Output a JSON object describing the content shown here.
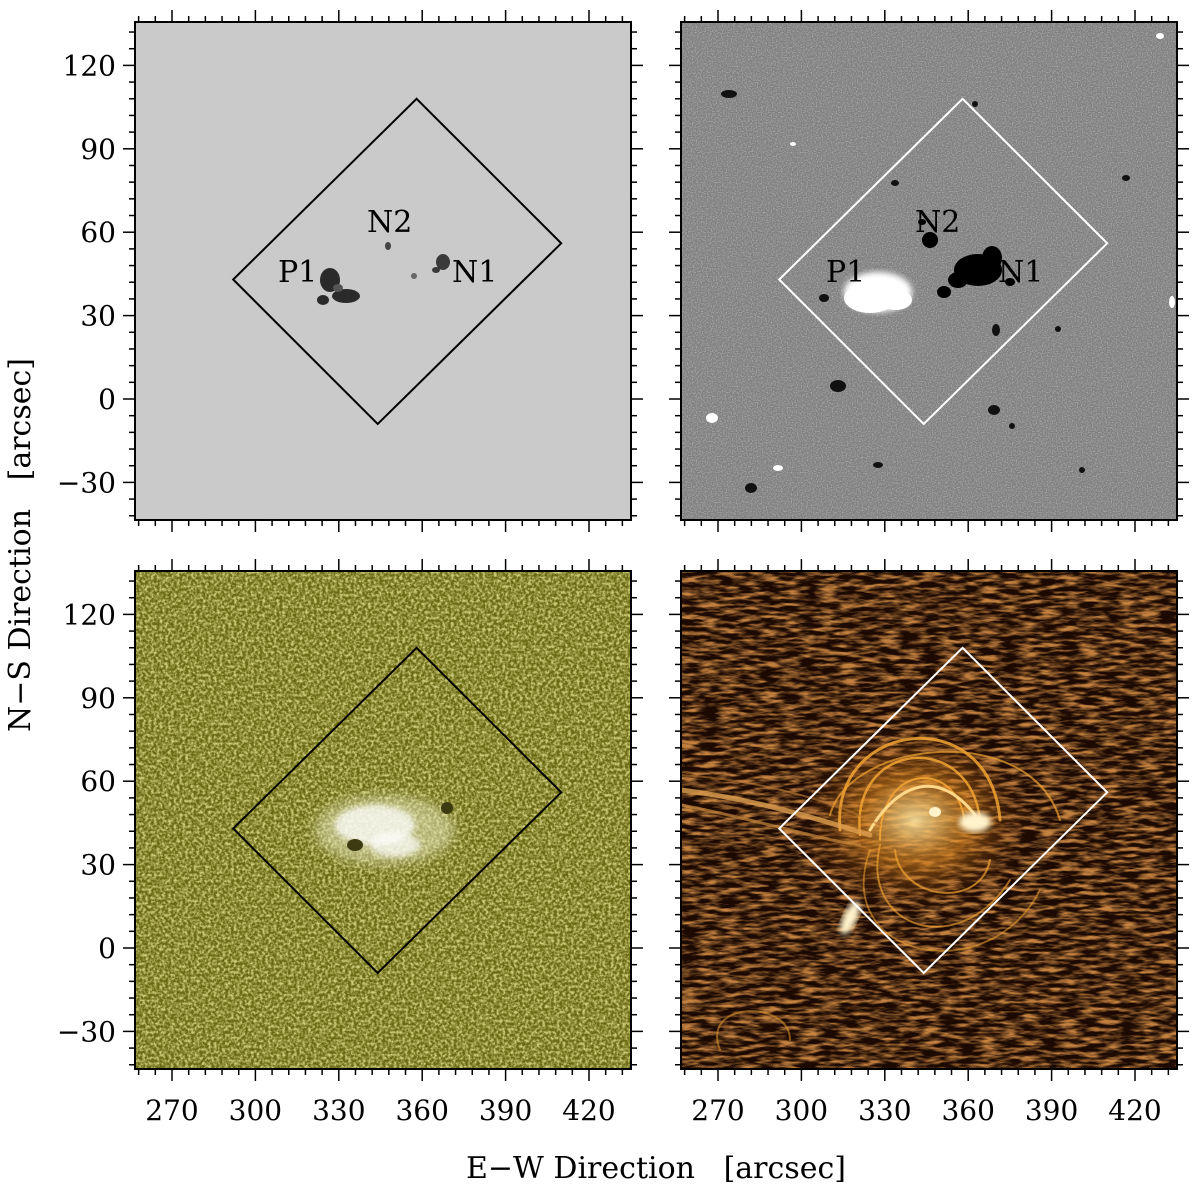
{
  "axes": {
    "x_title": "E−W Direction   [arcsec]",
    "y_title": "N−S Direction   [arcsec]",
    "x_ticks": [
      270,
      300,
      330,
      360,
      390,
      420
    ],
    "y_ticks": [
      120,
      90,
      60,
      30,
      0,
      -30
    ],
    "x_tick_labels": [
      "270",
      "300",
      "330",
      "360",
      "390",
      "420"
    ],
    "y_tick_labels": [
      "120",
      "90",
      "60",
      "30",
      "0",
      "−30"
    ]
  },
  "panels": [
    {
      "id": "continuum",
      "colors": {
        "background": "#c9c9c9",
        "texture": "#9a9a9a",
        "box": "#000000",
        "label": "#000000"
      },
      "labels": [
        "N2",
        "P1",
        "N1"
      ]
    },
    {
      "id": "magnetogram",
      "colors": {
        "background": "#808080",
        "texture": "#6a6a6a",
        "box": "#ffffff",
        "label": "#000000"
      },
      "labels": [
        "N2",
        "P1",
        "N1"
      ]
    },
    {
      "id": "chromosphere",
      "colors": {
        "background": "#6b6a14",
        "texture": "#8c8a2a",
        "box": "#000000"
      },
      "labels": []
    },
    {
      "id": "corona",
      "colors": {
        "background": "#1c0a02",
        "texture": "#3a1a06",
        "box": "#ffffff",
        "loops": "#f0a030"
      },
      "labels": []
    }
  ],
  "box_corners_arcsec": [
    [
      358,
      108
    ],
    [
      410,
      56
    ],
    [
      344,
      -9
    ],
    [
      292,
      43
    ]
  ]
}
